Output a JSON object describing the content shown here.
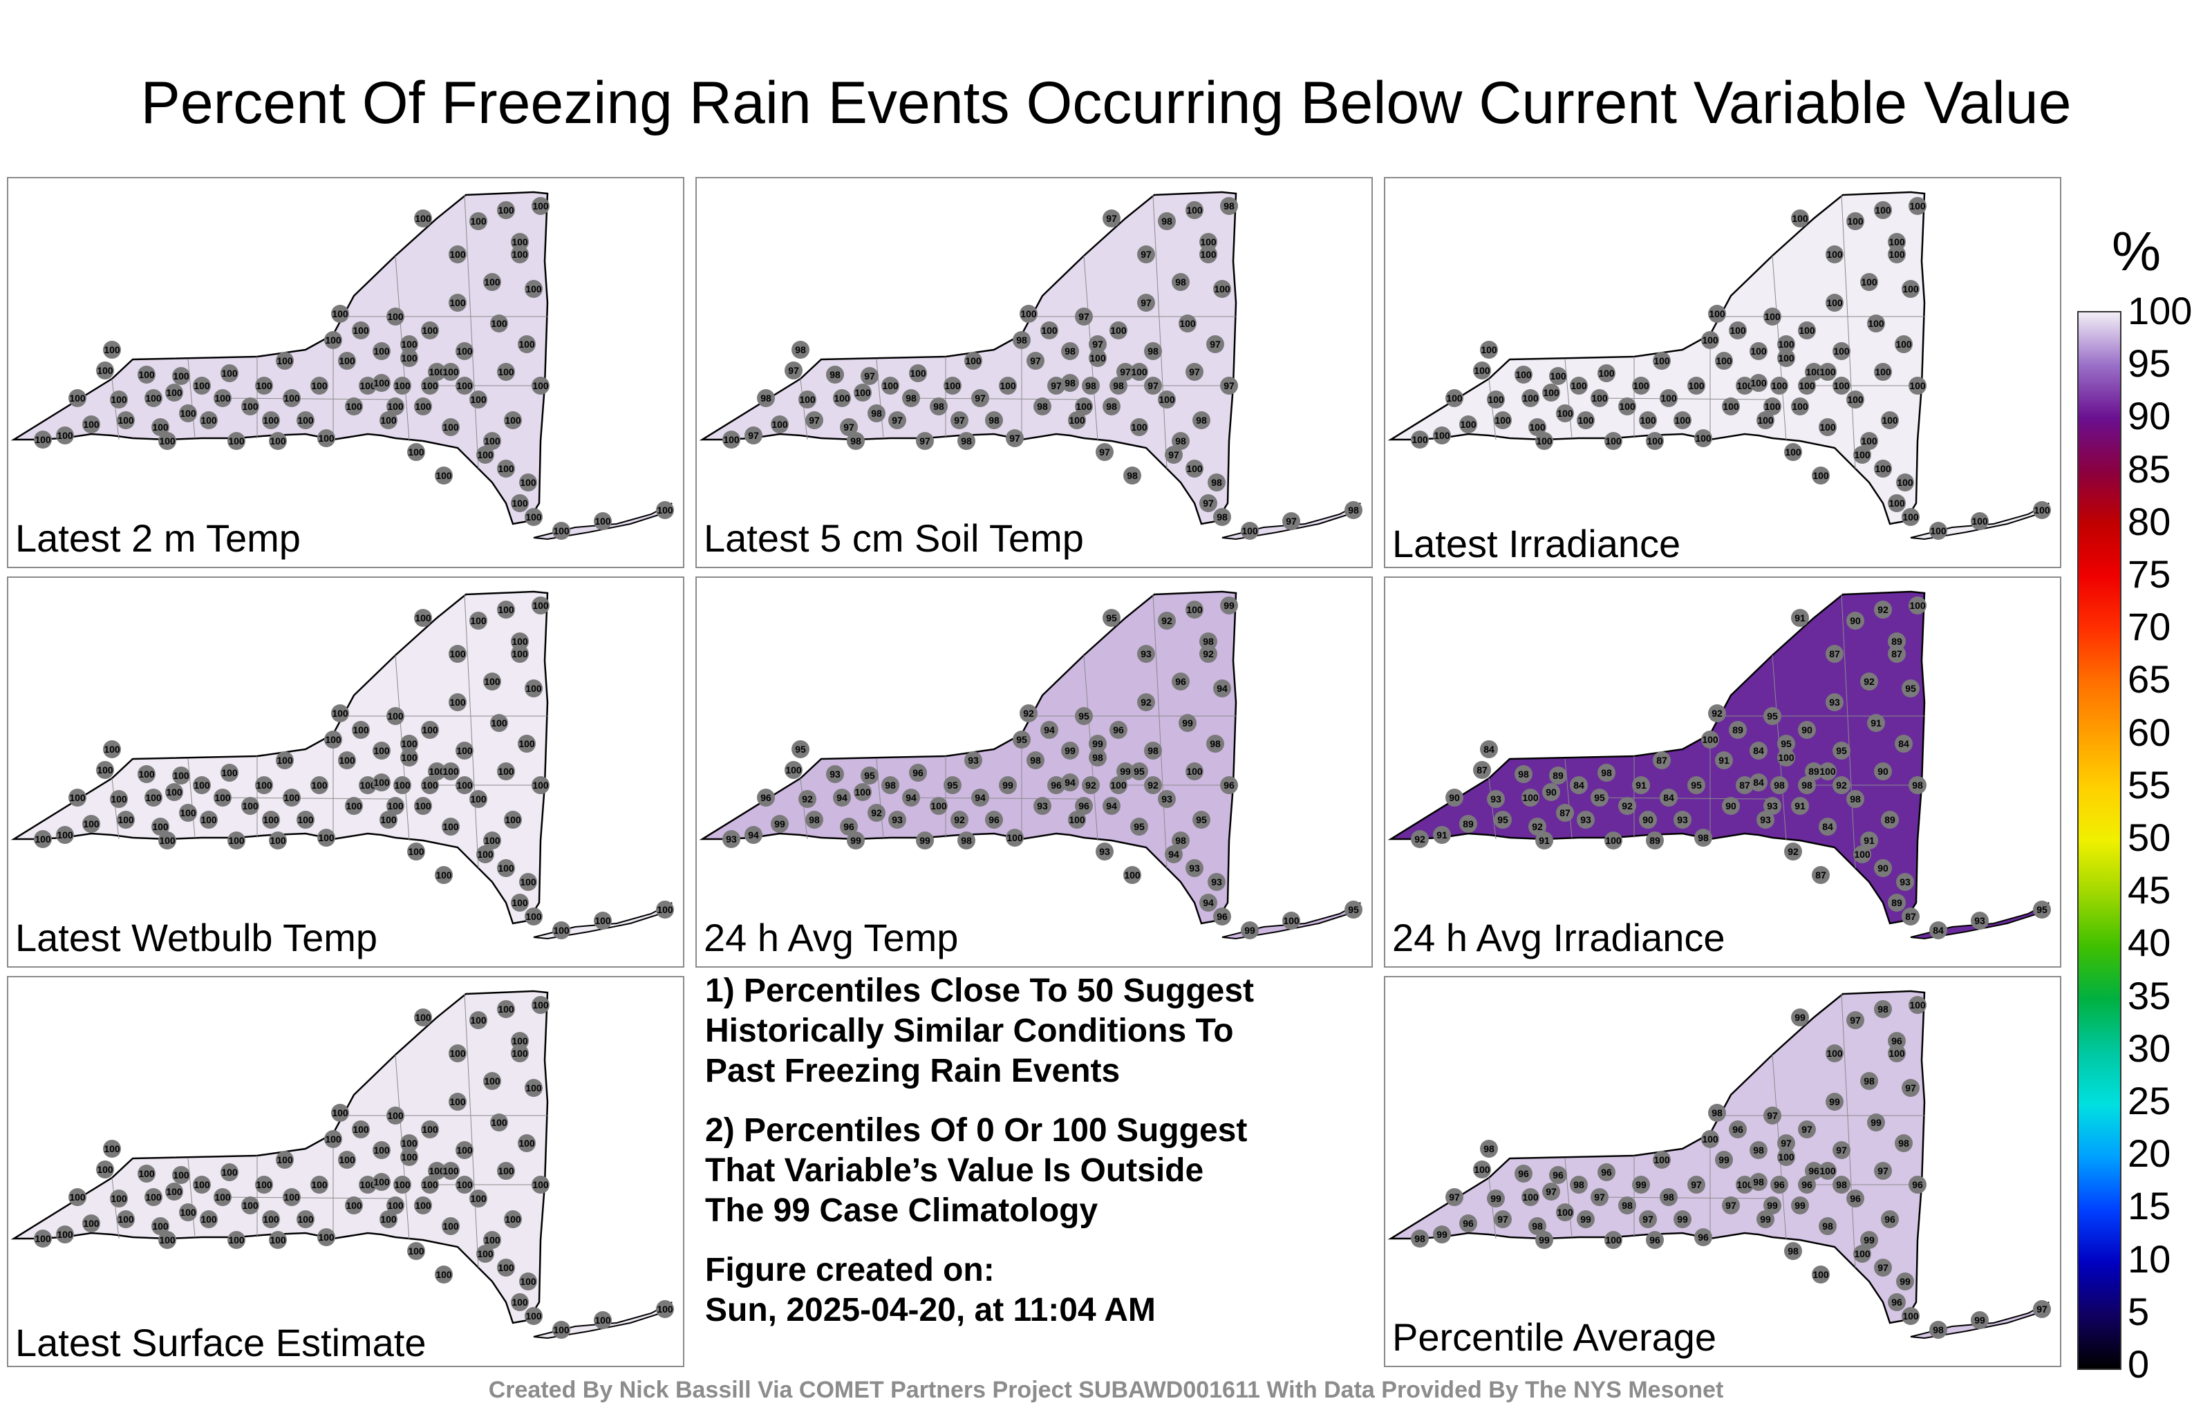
{
  "title": "Percent Of Freezing Rain Events Occurring Below Current Variable Value",
  "panels": [
    {
      "label": "Latest 2 m Temp",
      "tint": "#e4daee",
      "values": [
        100
      ]
    },
    {
      "label": "Latest 5 cm Soil Temp",
      "tint": "#e4daee",
      "values": [
        100,
        97,
        98
      ]
    },
    {
      "label": "Latest Irradiance",
      "tint": "#f1eef6",
      "values": [
        100
      ]
    },
    {
      "label": "Latest Wetbulb Temp",
      "tint": "#efeaf4",
      "values": [
        100
      ]
    },
    {
      "label": "24 h Avg Temp",
      "tint": "#cdb8e0",
      "values": [
        93,
        94,
        96,
        99,
        100,
        95,
        92,
        98
      ]
    },
    {
      "label": "24 h Avg Irradiance",
      "tint": "#6a2a9c",
      "values": [
        92,
        91,
        90,
        89,
        87,
        84,
        93,
        95,
        98,
        100
      ]
    },
    {
      "label": "Latest Surface Estimate",
      "tint": "#eee8f3",
      "values": [
        100
      ]
    },
    {
      "label": "Percentile Average",
      "tint": "#d6c6e6",
      "values": [
        98,
        99,
        97,
        96,
        100
      ]
    }
  ],
  "notes": [
    "1) Percentiles Close To 50 Suggest\nHistorically Similar Conditions To\nPast Freezing Rain Events",
    "2) Percentiles Of 0 Or 100 Suggest\nThat Variable’s Value Is Outside\nThe 99 Case Climatology"
  ],
  "figure_created": "Figure created on:\nSun, 2025-04-20, at 11:04 AM",
  "credit": "Created By Nick Bassill Via COMET Partners Project SUBAWD001611 With Data Provided By The NYS Mesonet",
  "colorbar": {
    "unit": "%",
    "ticks": [
      "100",
      "95",
      "90",
      "85",
      "80",
      "75",
      "70",
      "65",
      "60",
      "55",
      "50",
      "45",
      "40",
      "35",
      "30",
      "25",
      "20",
      "15",
      "10",
      "5",
      "0"
    ],
    "colors": [
      "#000000",
      "#100060",
      "#0000c0",
      "#0040ff",
      "#00a0ff",
      "#00e0e0",
      "#00c8a0",
      "#00b040",
      "#40c000",
      "#a0d800",
      "#f0f000",
      "#ffd000",
      "#ffa000",
      "#ff7000",
      "#ff3000",
      "#f00000",
      "#c00000",
      "#8a0040",
      "#6a1090",
      "#9a70c8",
      "#f2eef6"
    ]
  }
}
